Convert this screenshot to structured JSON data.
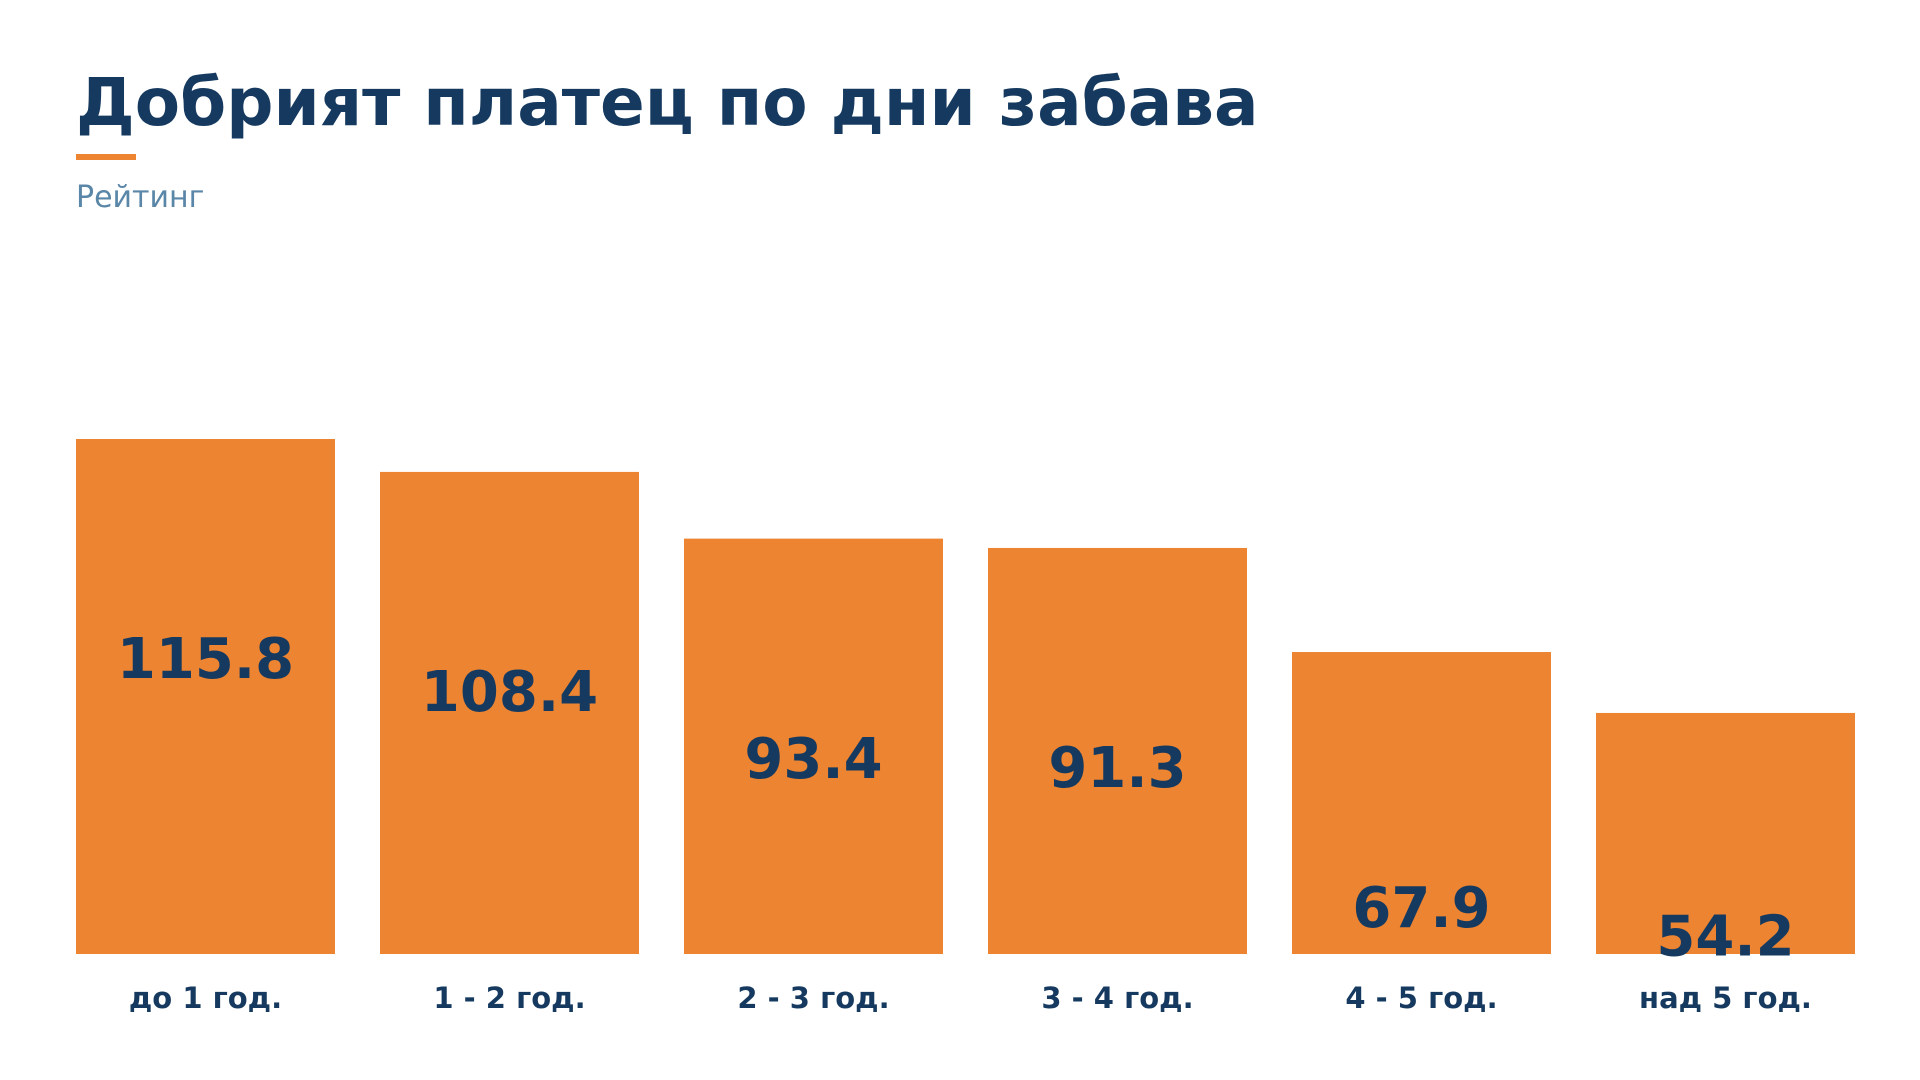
{
  "header": {
    "title": "Добрият платец по дни забава",
    "subtitle": "Рейтинг"
  },
  "colors": {
    "bar": "#ec8432",
    "text": "#163a5f",
    "subtitle": "#5a86a8",
    "accent": "#ec8432"
  },
  "chart_data": {
    "type": "bar",
    "title": "Добрият платец по дни забава",
    "subtitle": "Рейтинг",
    "categories": [
      "до 1 год.",
      "1 - 2 год.",
      "2 - 3 год.",
      "3 - 4 год.",
      "4 - 5 год.",
      "над 5 год."
    ],
    "values": [
      115.8,
      108.4,
      93.4,
      91.3,
      67.9,
      54.2
    ],
    "value_labels": [
      "115.8",
      "108.4",
      "93.4",
      "91.3",
      "67.9",
      "54.2"
    ],
    "xlabel": "",
    "ylabel": "",
    "ylim": [
      0,
      115.8
    ],
    "grid": false,
    "legend": "none"
  }
}
